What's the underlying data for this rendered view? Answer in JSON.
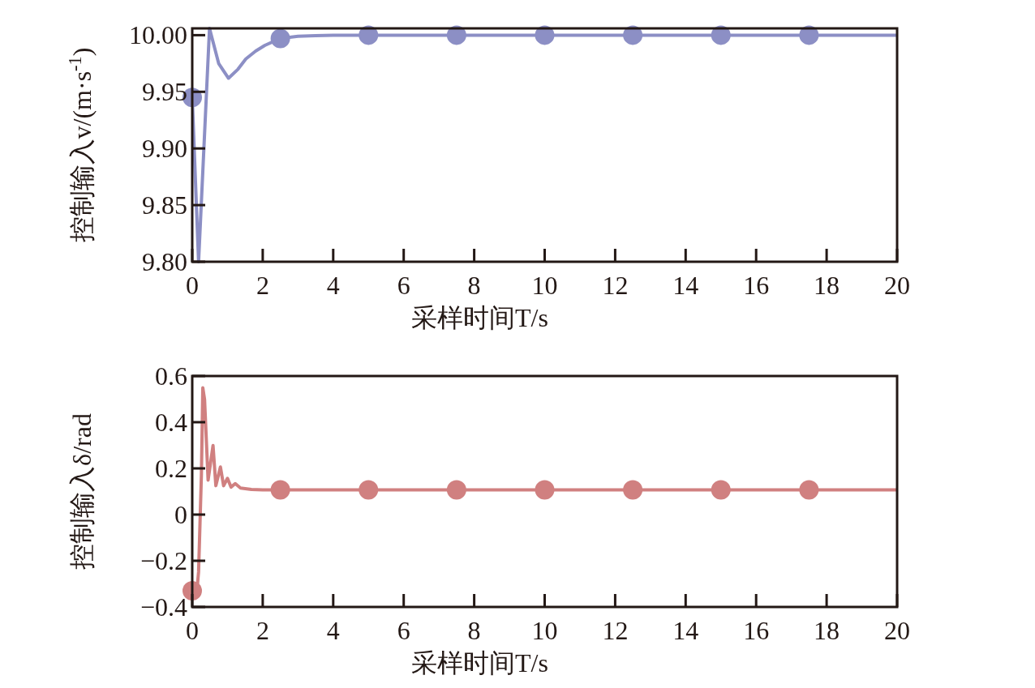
{
  "chart_data": [
    {
      "type": "line",
      "xlabel": "采样时间T/s",
      "ylabel": "控制输入v/(m·s$^{-1}$)",
      "xlim": [
        0,
        20
      ],
      "xticks": [
        0,
        2,
        4,
        6,
        8,
        10,
        12,
        14,
        16,
        18,
        20
      ],
      "ylim": [
        9.8,
        10.006
      ],
      "yticks": [
        {
          "value": 9.8,
          "label": "9.80"
        },
        {
          "value": 9.85,
          "label": "9.85"
        },
        {
          "value": 9.9,
          "label": "9.90"
        },
        {
          "value": 9.95,
          "label": "9.95"
        },
        {
          "value": 10,
          "label": "10.00"
        }
      ],
      "grid": false,
      "series": [
        {
          "type": "line",
          "marker": "none",
          "color": "#8c8fc5",
          "x": [
            0,
            0.18,
            0.49,
            0.75,
            1.03,
            1.3,
            1.52,
            1.8,
            2.06,
            2.49,
            3.0,
            3.5,
            4,
            6,
            8,
            10,
            12,
            14,
            16,
            18,
            20
          ],
          "values": [
            9.945,
            9.8,
            10.006,
            9.975,
            9.962,
            9.97,
            9.979,
            9.986,
            9.991,
            9.997,
            9.999,
            9.9995,
            10,
            10,
            10,
            10,
            10,
            10,
            10,
            10,
            10
          ]
        },
        {
          "type": "scatter",
          "marker": "circle",
          "color": "#8c8fc5",
          "x": [
            0,
            2.5,
            5,
            7.5,
            10,
            12.5,
            15,
            17.5
          ],
          "values": [
            9.945,
            9.997,
            10,
            10,
            10,
            10,
            10,
            10
          ]
        }
      ]
    },
    {
      "type": "line",
      "xlabel": "采样时间T/s",
      "ylabel": "控制输入δ/rad",
      "xlim": [
        0,
        20
      ],
      "xticks": [
        0,
        2,
        4,
        6,
        8,
        10,
        12,
        14,
        16,
        18,
        20
      ],
      "ylim": [
        -0.4,
        0.6
      ],
      "yticks": [
        -0.4,
        -0.2,
        0,
        0.2,
        0.4,
        0.6
      ],
      "grid": false,
      "series": [
        {
          "type": "line",
          "marker": "none",
          "color": "#d08080",
          "x": [
            0,
            0.15,
            0.18,
            0.22,
            0.26,
            0.3,
            0.35,
            0.45,
            0.59,
            0.67,
            0.8,
            0.89,
            1.0,
            1.1,
            1.22,
            1.37,
            1.68,
            2.0,
            4,
            6,
            8,
            10,
            12,
            14,
            16,
            18,
            20
          ],
          "values": [
            -0.33,
            -0.3,
            -0.248,
            -0.04,
            0.171,
            0.549,
            0.498,
            0.149,
            0.299,
            0.125,
            0.206,
            0.125,
            0.157,
            0.119,
            0.134,
            0.115,
            0.109,
            0.107,
            0.107,
            0.107,
            0.107,
            0.107,
            0.107,
            0.107,
            0.107,
            0.107,
            0.107
          ]
        },
        {
          "type": "scatter",
          "marker": "circle",
          "color": "#d08080",
          "x": [
            0,
            2.5,
            5,
            7.5,
            10,
            12.5,
            15,
            17.5
          ],
          "values": [
            -0.33,
            0.107,
            0.107,
            0.107,
            0.107,
            0.107,
            0.107,
            0.107
          ]
        }
      ]
    }
  ]
}
